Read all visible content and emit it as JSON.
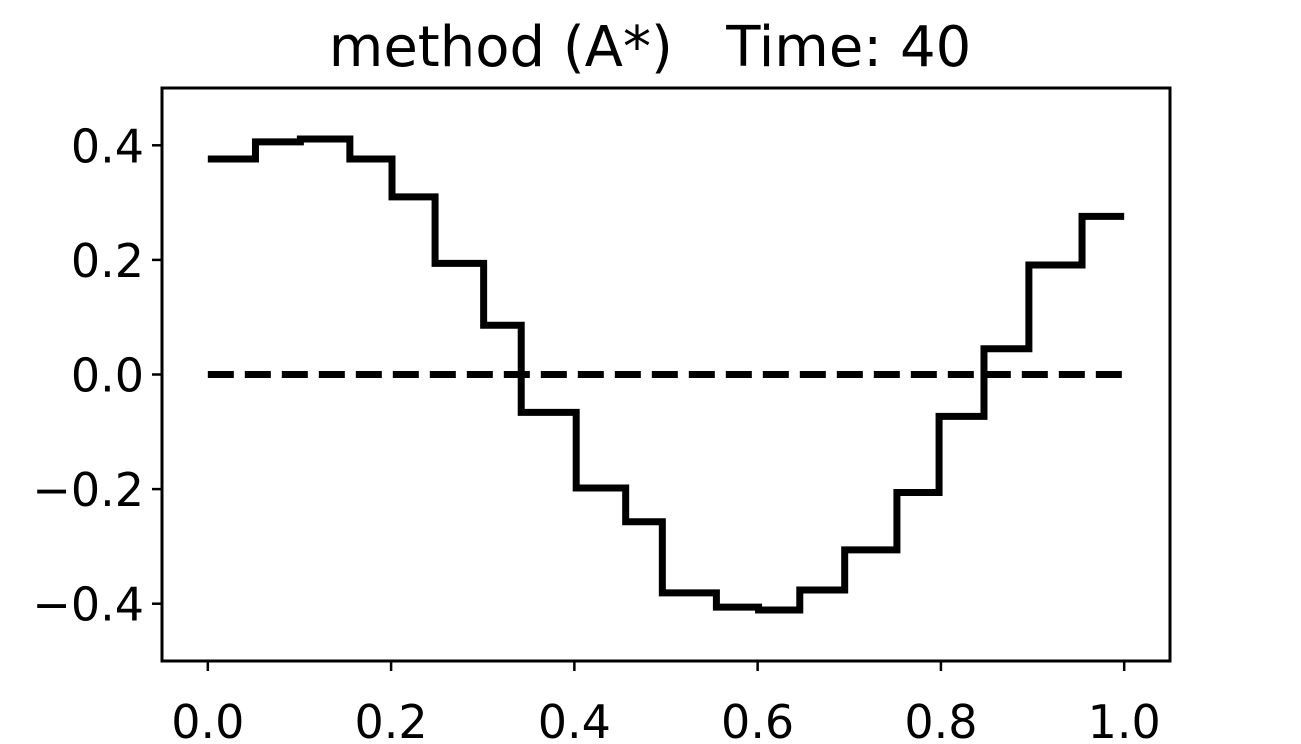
{
  "chart_data": {
    "type": "line",
    "title": "method (A*)   Time: 40",
    "series": [
      {
        "x": [
          0.0,
          0.052,
          0.101,
          0.155,
          0.201,
          0.248,
          0.301,
          0.342,
          0.402,
          0.456,
          0.496,
          0.555,
          0.601,
          0.646,
          0.695,
          0.752,
          0.798,
          0.847,
          0.896,
          0.954,
          1.0
        ],
        "values": [
          0.376,
          0.406,
          0.411,
          0.376,
          0.31,
          0.194,
          0.086,
          -0.066,
          -0.198,
          -0.257,
          -0.381,
          -0.406,
          -0.411,
          -0.376,
          -0.306,
          -0.206,
          -0.073,
          0.045,
          0.191,
          0.276,
          0.276
        ],
        "color": "#000000",
        "drawstyle": "steps-post",
        "linestyle": "solid"
      },
      {
        "x": [
          0.0,
          1.0
        ],
        "values": [
          0,
          0
        ],
        "color": "#000000",
        "drawstyle": "default",
        "linestyle": "dashed"
      }
    ],
    "xlim": [
      -0.05,
      1.05
    ],
    "xticks": [
      {
        "value": 0,
        "label": "0.0"
      },
      0.2,
      0.4,
      0.6,
      0.8,
      {
        "value": 1,
        "label": "1.0"
      }
    ],
    "ylim": [
      -0.5,
      0.5
    ],
    "yticks": [
      {
        "value": -0.4,
        "label": "−0.4"
      },
      {
        "value": -0.2,
        "label": "−0.2"
      },
      {
        "value": 0,
        "label": "0.0"
      },
      0.2,
      0.4
    ],
    "grid": false
  }
}
